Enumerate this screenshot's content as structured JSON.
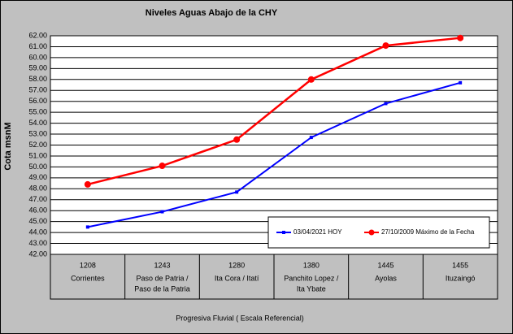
{
  "chart_data": {
    "type": "line",
    "title": "Niveles Aguas Abajo de la CHY",
    "y_label": "Cota msnM",
    "x_label": "Progresiva Fluvial ( Escala Referencial)",
    "categories": [
      "1208",
      "1243",
      "1280",
      "1380",
      "1445",
      "1455"
    ],
    "category_names": [
      [
        "Corrientes"
      ],
      [
        "Paso de Patria /",
        "Paso de la Patria"
      ],
      [
        "Ita Cora / Itatí"
      ],
      [
        "Panchito Lopez /",
        "Ita Ybate"
      ],
      [
        "Ayolas"
      ],
      [
        "Ituzaingó"
      ]
    ],
    "series": [
      {
        "name": "03/04/2021 HOY",
        "color": "#0000ff",
        "values": [
          44.5,
          45.9,
          47.7,
          52.7,
          55.8,
          57.7
        ]
      },
      {
        "name": "27/10/2009 Máximo de la Fecha",
        "color": "#ff0000",
        "values": [
          48.4,
          50.1,
          52.5,
          58.0,
          61.1,
          61.8
        ]
      }
    ],
    "ylim": [
      42,
      62
    ],
    "yticks": [
      {
        "value": 42,
        "label": "42.00"
      },
      {
        "value": 43,
        "label": "43.00"
      },
      {
        "value": 44,
        "label": "44.00"
      },
      {
        "value": 45,
        "label": "45.00"
      },
      {
        "value": 46,
        "label": "46.00"
      },
      {
        "value": 47,
        "label": "47.00"
      },
      {
        "value": 48,
        "label": "48.00"
      },
      {
        "value": 49,
        "label": "49.00"
      },
      {
        "value": 50,
        "label": "50.00"
      },
      {
        "value": 51,
        "label": "51.00"
      },
      {
        "value": 52,
        "label": "52.00"
      },
      {
        "value": 53,
        "label": "53.00"
      },
      {
        "value": 54,
        "label": "54.00"
      },
      {
        "value": 55,
        "label": "55.00"
      },
      {
        "value": 56,
        "label": "56.00"
      },
      {
        "value": 57,
        "label": "57.00"
      },
      {
        "value": 58,
        "label": "58.00"
      },
      {
        "value": 59,
        "label": "59.00"
      },
      {
        "value": 60,
        "label": "60.00"
      },
      {
        "value": 61,
        "label": "61.00"
      },
      {
        "value": 62,
        "label": "62.00"
      }
    ],
    "grid": true
  }
}
